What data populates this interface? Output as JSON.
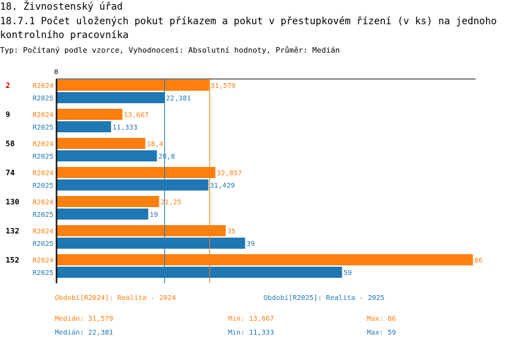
{
  "header": {
    "title1": "18. Živnostenský úřad",
    "title2": "18.7.1 Počet uložených pokut příkazem a pokut v přestupkovém řízení (v ks) na jednoho kontrolního pracovníka",
    "subtitle": "Typ: Počítaný podle vzorce, Vyhodnocení: Absolutní hodnoty, Průměr: Medián"
  },
  "colors": {
    "s2024": "#ff7f0e",
    "s2025": "#1f77b4",
    "highlight": "#cc0000"
  },
  "chart_data": {
    "type": "bar",
    "orientation": "horizontal",
    "categories": [
      "2",
      "9",
      "58",
      "74",
      "130",
      "132",
      "152"
    ],
    "highlighted_category": "2",
    "series": [
      {
        "name": "R2024",
        "values": [
          31.579,
          13.667,
          18.4,
          32.857,
          21.25,
          35,
          86
        ],
        "labels": [
          "31,579",
          "13,667",
          "18,4",
          "32,857",
          "21,25",
          "35",
          "86"
        ]
      },
      {
        "name": "R2025",
        "values": [
          22.381,
          11.333,
          20.8,
          31.429,
          19,
          39,
          59
        ],
        "labels": [
          "22,381",
          "11,333",
          "20,8",
          "31,429",
          "19",
          "39",
          "59"
        ]
      }
    ],
    "xlim": [
      0,
      86
    ],
    "x_tick_label": "0",
    "median_lines": [
      31.579,
      22.381
    ]
  },
  "legend": {
    "s2024": "Období[R2024]: Realita - 2024",
    "s2025": "Období[R2025]: Realita - 2025"
  },
  "stats": {
    "s2024": {
      "median": "Medián: 31,579",
      "min": "Min: 13,667",
      "max": "Max: 86"
    },
    "s2025": {
      "median": "Medián: 22,381",
      "min": "Min: 11,333",
      "max": "Max: 59"
    }
  }
}
